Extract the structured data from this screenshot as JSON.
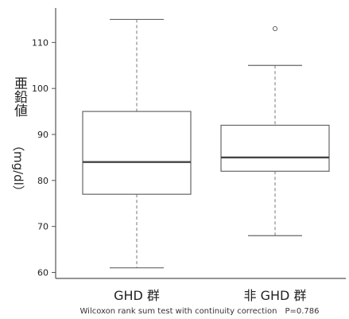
{
  "chart_data": {
    "type": "boxplot",
    "ylabel": "亜鉛値（mg/dl）",
    "ylim": [
      58.7,
      117.5
    ],
    "yticks": [
      60,
      70,
      80,
      90,
      100,
      110
    ],
    "categories": [
      "GHD 群",
      "非 GHD 群"
    ],
    "boxes": [
      {
        "name": "GHD 群",
        "whisker_low": 61,
        "q1": 77,
        "median": 84,
        "q3": 95,
        "whisker_high": 115,
        "outliers": []
      },
      {
        "name": "非 GHD 群",
        "whisker_low": 68,
        "q1": 82,
        "median": 85,
        "q3": 92,
        "whisker_high": 105,
        "outliers": [
          113
        ]
      }
    ],
    "grid": false,
    "footnote": "Wilcoxon rank sum test with continuity correction　P=0.786",
    "colors": {
      "axis": "#555555",
      "box": "#666666",
      "median": "#444444",
      "whisker": "#777777",
      "text": "#222222"
    }
  }
}
